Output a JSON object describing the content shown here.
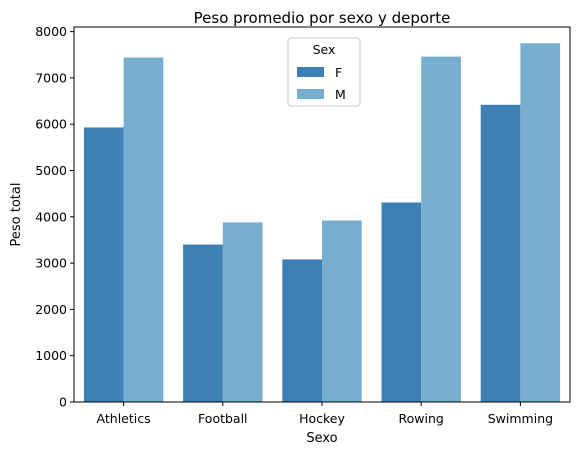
{
  "chart_data": {
    "type": "bar",
    "title": "Peso promedio por sexo y deporte",
    "xlabel": "Sexo",
    "ylabel": "Peso total",
    "categories": [
      "Athletics",
      "Football",
      "Hockey",
      "Rowing",
      "Swimming"
    ],
    "series": [
      {
        "name": "F",
        "color": "#3d80b3",
        "values": [
          5930,
          3400,
          3080,
          4310,
          6420
        ]
      },
      {
        "name": "M",
        "color": "#77aed0",
        "values": [
          7440,
          3880,
          3920,
          7460,
          7750
        ]
      }
    ],
    "ylim": [
      0,
      8100
    ],
    "yticks": [
      "0",
      "1000",
      "2000",
      "3000",
      "4000",
      "5000",
      "6000",
      "7000",
      "8000"
    ],
    "grid": false,
    "legend": {
      "title": "Sex",
      "placement": "top-center"
    }
  }
}
